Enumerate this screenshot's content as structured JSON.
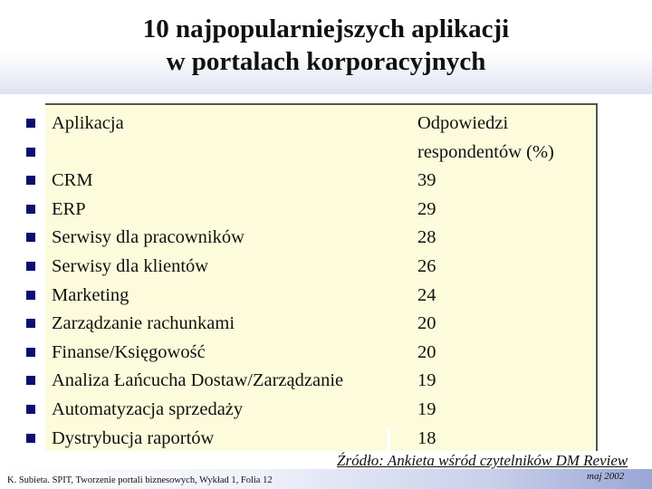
{
  "slide": {
    "title_line1": "10 najpopularniejszych aplikacji",
    "title_line2": "w portalach korporacyjnych",
    "header": {
      "label": "Aplikacja",
      "value_line1": "Odpowiedzi",
      "value_line2": "respondentów (%)"
    },
    "rows": [
      {
        "label": "CRM",
        "value": "39"
      },
      {
        "label": "ERP",
        "value": "29"
      },
      {
        "label": "Serwisy dla pracowników",
        "value": "28"
      },
      {
        "label": "Serwisy dla klientów",
        "value": "26"
      },
      {
        "label": "Marketing",
        "value": "24"
      },
      {
        "label": "Zarządzanie rachunkami",
        "value": "20"
      },
      {
        "label": "Finanse/Księgowość",
        "value": "20"
      },
      {
        "label": "Analiza Łańcucha Dostaw/Zarządzanie",
        "value": "19"
      },
      {
        "label": "Automatyzacja sprzedaży",
        "value": "19"
      },
      {
        "label": "Dystrybucja raportów",
        "value": "18"
      }
    ],
    "source": "Źródło: Ankieta wśród czytelników DM Review",
    "footer_left": "K. Subieta. SPIT, Tworzenie portali biznesowych, Wykład 1, Folia 12",
    "footer_right": "maj 2002"
  },
  "colors": {
    "panel_background": "#fcfcdc",
    "bullet": "#0b1070",
    "footer_gradient_end": "#9aa6d6"
  },
  "icons": {
    "bullet": "square-bullet-icon"
  }
}
